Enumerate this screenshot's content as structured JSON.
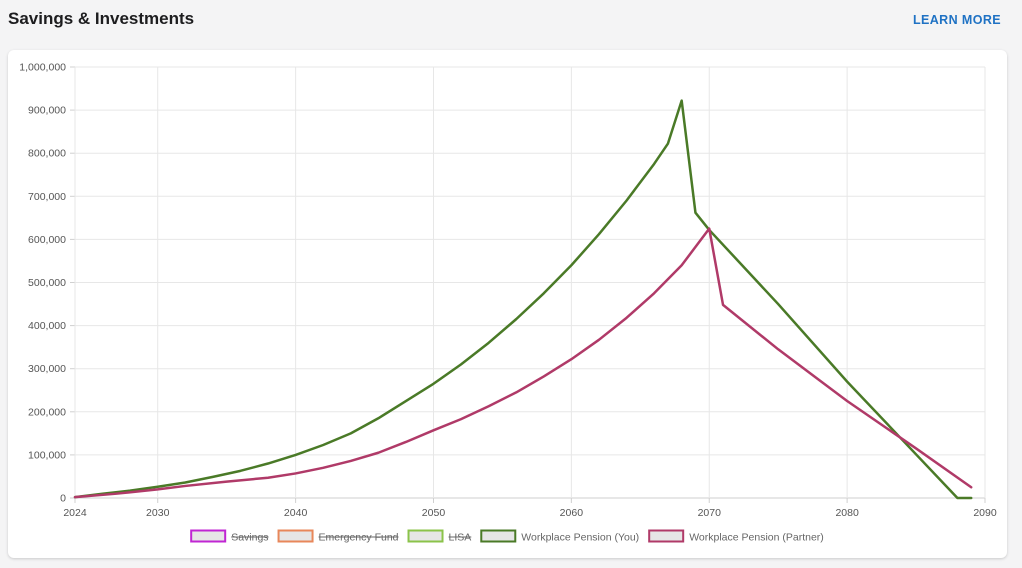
{
  "header": {
    "title": "Savings & Investments",
    "learn_more_label": "LEARN MORE"
  },
  "colors": {
    "accent": "#1f72c4"
  },
  "chart_data": {
    "type": "line",
    "title": "",
    "xlabel": "",
    "ylabel": "",
    "xlim": [
      2024,
      2090
    ],
    "ylim": [
      0,
      1000000
    ],
    "x_ticks": [
      2024,
      2030,
      2040,
      2050,
      2060,
      2070,
      2080,
      2090
    ],
    "y_ticks": [
      0,
      100000,
      200000,
      300000,
      400000,
      500000,
      600000,
      700000,
      800000,
      900000,
      1000000
    ],
    "grid": true,
    "legend_position": "bottom",
    "series": [
      {
        "name": "Savings",
        "color": "#c026d3",
        "hidden": true,
        "points": []
      },
      {
        "name": "Emergency Fund",
        "color": "#e8875a",
        "hidden": true,
        "points": []
      },
      {
        "name": "LISA",
        "color": "#8bc34a",
        "hidden": true,
        "points": []
      },
      {
        "name": "Workplace Pension (You)",
        "color": "#4a7a27",
        "hidden": false,
        "points": [
          [
            2024,
            2000
          ],
          [
            2026,
            10000
          ],
          [
            2028,
            17000
          ],
          [
            2030,
            26000
          ],
          [
            2032,
            36000
          ],
          [
            2034,
            49000
          ],
          [
            2036,
            63000
          ],
          [
            2038,
            80000
          ],
          [
            2040,
            100000
          ],
          [
            2042,
            123000
          ],
          [
            2044,
            150000
          ],
          [
            2046,
            185000
          ],
          [
            2048,
            225000
          ],
          [
            2050,
            265000
          ],
          [
            2052,
            310000
          ],
          [
            2054,
            360000
          ],
          [
            2056,
            415000
          ],
          [
            2058,
            475000
          ],
          [
            2060,
            540000
          ],
          [
            2062,
            612000
          ],
          [
            2064,
            690000
          ],
          [
            2066,
            775000
          ],
          [
            2067,
            822000
          ],
          [
            2068,
            922000
          ],
          [
            2069,
            662000
          ],
          [
            2070,
            622000
          ],
          [
            2075,
            450000
          ],
          [
            2080,
            270000
          ],
          [
            2084,
            135000
          ],
          [
            2088,
            0
          ],
          [
            2089,
            0
          ]
        ]
      },
      {
        "name": "Workplace Pension (Partner)",
        "color": "#b03a68",
        "hidden": false,
        "points": [
          [
            2024,
            2000
          ],
          [
            2027,
            10000
          ],
          [
            2030,
            20000
          ],
          [
            2032,
            28000
          ],
          [
            2035,
            38000
          ],
          [
            2038,
            47000
          ],
          [
            2040,
            57000
          ],
          [
            2042,
            70000
          ],
          [
            2044,
            86000
          ],
          [
            2046,
            105000
          ],
          [
            2048,
            130000
          ],
          [
            2050,
            157000
          ],
          [
            2052,
            183000
          ],
          [
            2054,
            213000
          ],
          [
            2056,
            245000
          ],
          [
            2058,
            282000
          ],
          [
            2060,
            322000
          ],
          [
            2062,
            367000
          ],
          [
            2064,
            418000
          ],
          [
            2066,
            475000
          ],
          [
            2068,
            540000
          ],
          [
            2070,
            625000
          ],
          [
            2071,
            448000
          ],
          [
            2075,
            345000
          ],
          [
            2080,
            225000
          ],
          [
            2085,
            115000
          ],
          [
            2089,
            25000
          ]
        ]
      }
    ]
  }
}
